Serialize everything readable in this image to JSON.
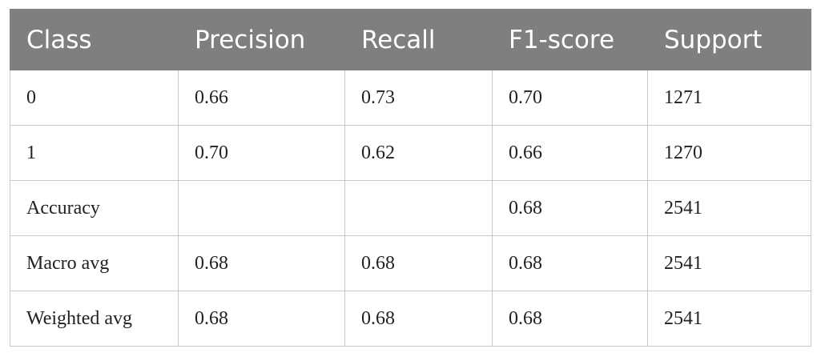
{
  "table": {
    "header": [
      "Class",
      "Precision",
      "Recall",
      "F1-score",
      "Support"
    ],
    "rows": [
      [
        "0",
        "0.66",
        "0.73",
        "0.70",
        "1271"
      ],
      [
        "1",
        "0.70",
        "0.62",
        "0.66",
        "1270"
      ],
      [
        "Accuracy",
        null,
        null,
        "0.68",
        "2541"
      ],
      [
        "Macro avg",
        "0.68",
        "0.68",
        "0.68",
        "2541"
      ],
      [
        "Weighted avg",
        "0.68",
        "0.68",
        "0.68",
        "2541"
      ]
    ]
  }
}
